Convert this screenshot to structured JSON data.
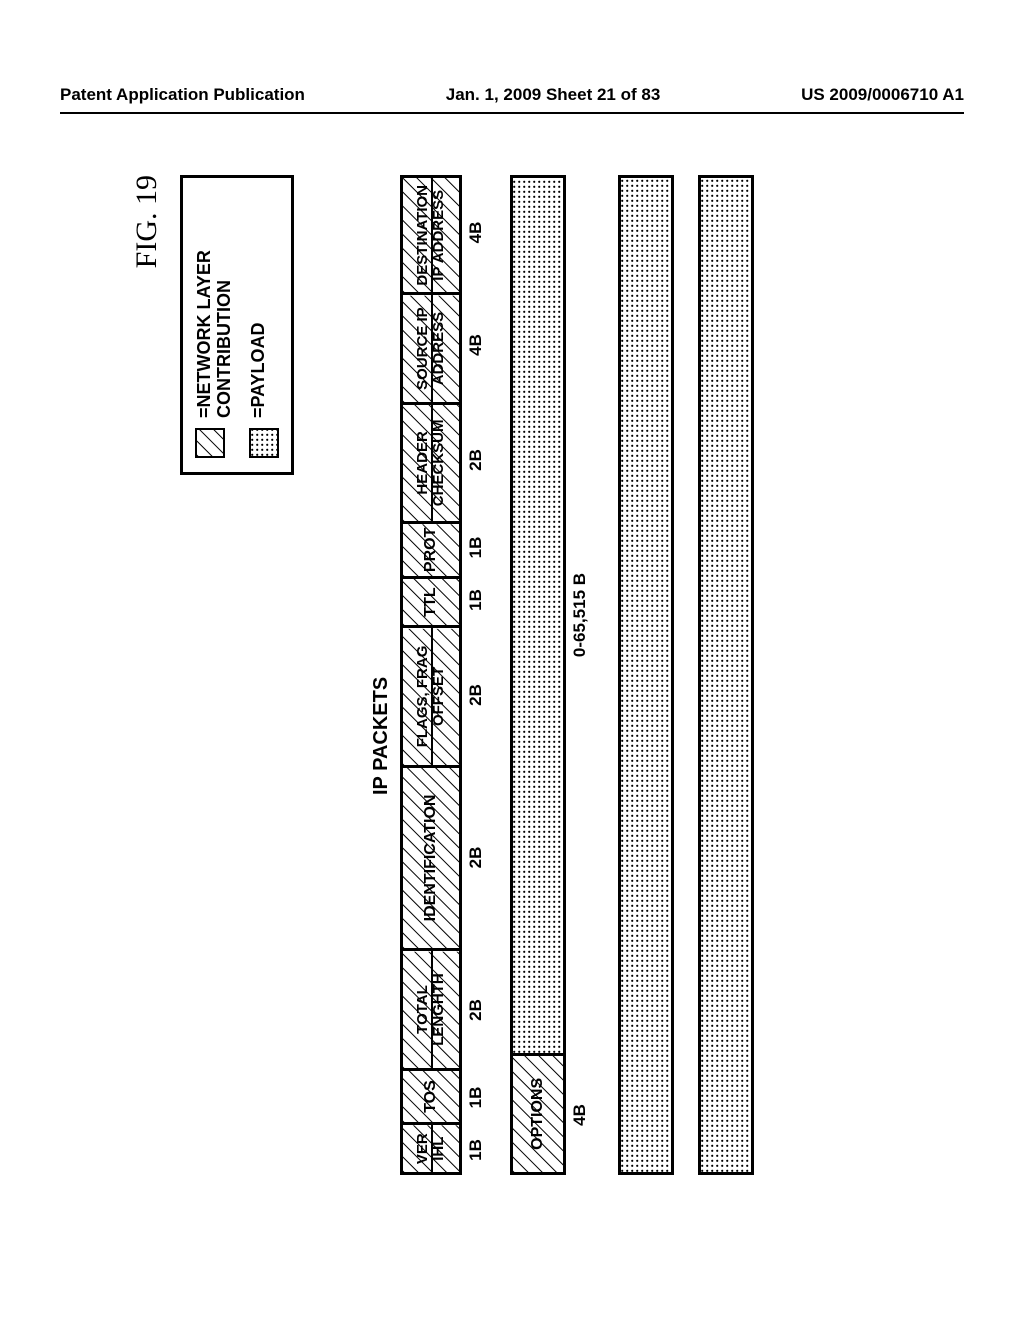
{
  "header": {
    "left": "Patent Application Publication",
    "center": "Jan. 1, 2009  Sheet 21 of 83",
    "right": "US 2009/0006710 A1"
  },
  "figure_label": "FIG. 19",
  "legend": {
    "items": [
      {
        "label": "=NETWORK LAYER CONTRIBUTION",
        "fill": "hatch"
      },
      {
        "label": "=PAYLOAD",
        "fill": "dot"
      }
    ]
  },
  "packets_title": "IP PACKETS",
  "header_cells": [
    {
      "top": "VER",
      "bottom": "IHL",
      "width_pct": 5.0,
      "size": "1B"
    },
    {
      "top": "TOS",
      "bottom": "",
      "width_pct": 5.5,
      "size": "1B"
    },
    {
      "top": "TOTAL",
      "bottom": "LENGHTH",
      "width_pct": 12.0,
      "size": "2B"
    },
    {
      "top": "IDENTIFICATION",
      "bottom": "",
      "width_pct": 18.5,
      "size": "2B"
    },
    {
      "top": "FLAGS, FRAG",
      "bottom": "OFFSET",
      "width_pct": 14.0,
      "size": "2B"
    },
    {
      "top": "TTL",
      "bottom": "",
      "width_pct": 5.0,
      "size": "1B"
    },
    {
      "top": "PROT",
      "bottom": "",
      "width_pct": 5.5,
      "size": "1B"
    },
    {
      "top": "HEADER",
      "bottom": "CHECKSUM",
      "width_pct": 12.0,
      "size": "2B"
    },
    {
      "top": "SOURCE IP",
      "bottom": "ADDRESS",
      "width_pct": 11.0,
      "size": "4B"
    },
    {
      "top": "DESTINATION",
      "bottom": "IP ADDRESS",
      "width_pct": 11.5,
      "size": "4B"
    }
  ],
  "row2": {
    "options_label": "OPTIONS",
    "options_width_pct": 12.0,
    "options_size": "4B",
    "payload_size": "0-65,515 B"
  },
  "colors": {
    "stroke": "#000000",
    "bg": "#ffffff"
  }
}
